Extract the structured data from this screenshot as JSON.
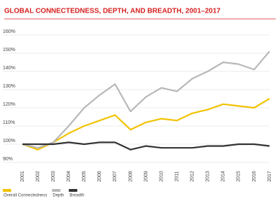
{
  "chart_data": {
    "type": "line",
    "title": "GLOBAL CONNECTEDNESS, DEPTH, AND BREADTH, 2001–2017",
    "categories": [
      "2001",
      "2002",
      "2003",
      "2004",
      "2005",
      "2006",
      "2007",
      "2008",
      "2009",
      "2010",
      "2011",
      "2012",
      "2013",
      "2014",
      "2015",
      "2016",
      "2017"
    ],
    "series": [
      {
        "name": "Overall Connectedness",
        "color": "#f2c200",
        "values": [
          100,
          97,
          101,
          106,
          110,
          113,
          116,
          108,
          112,
          114,
          113,
          117,
          119,
          122,
          121,
          120,
          125
        ]
      },
      {
        "name": "Depth",
        "color": "#b8b8b8",
        "values": [
          100,
          98,
          101,
          110,
          120,
          127,
          133,
          118,
          126,
          131,
          129,
          136,
          140,
          145,
          144,
          141,
          151
        ]
      },
      {
        "name": "Breadth",
        "color": "#333333",
        "values": [
          100,
          100,
          100,
          101,
          100,
          101,
          101,
          97,
          99,
          98,
          98,
          98,
          99,
          99,
          100,
          100,
          99
        ]
      }
    ],
    "ylim": [
      90,
      160
    ],
    "yticks": [
      {
        "value": 90,
        "label": "90%"
      },
      {
        "value": 100,
        "label": "100%"
      },
      {
        "value": 110,
        "label": "110%"
      },
      {
        "value": 120,
        "label": "120%"
      },
      {
        "value": 130,
        "label": "130%"
      },
      {
        "value": 140,
        "label": "140%"
      },
      {
        "value": 150,
        "label": "150%"
      },
      {
        "value": 160,
        "label": "160%"
      }
    ],
    "grid": true,
    "legend": "bottom-left"
  }
}
